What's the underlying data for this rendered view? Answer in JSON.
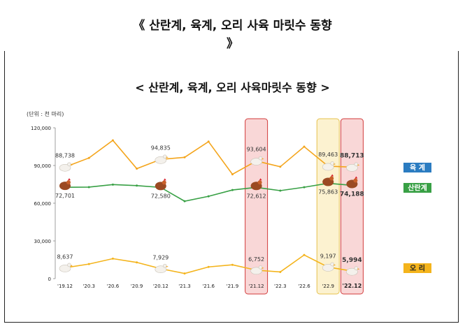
{
  "header": {
    "title_line1": "《 산란계, 육계, 오리 사육 마릿수 동향",
    "title_line2": "》"
  },
  "chart_data": {
    "type": "line",
    "title": "< 산란계, 육계, 오리 사육마릿수 동향 >",
    "unit_label": "(단위 : 천 마리)",
    "categories": [
      "'19.12",
      "'20.3",
      "'20.6",
      "'20.9",
      "'20.12",
      "'21.3",
      "'21.6",
      "'21.9",
      "'21.12",
      "'22.3",
      "'22.6",
      "'22.9",
      "'22.12"
    ],
    "ylim": [
      0,
      120000
    ],
    "yticks": [
      "0",
      "30,000",
      "60,000",
      "90,000",
      "120,000"
    ],
    "ytick_values": [
      0,
      30000,
      60000,
      90000,
      120000
    ],
    "grid": false,
    "legend_position": "right",
    "series": [
      {
        "name": "육 계",
        "color": "#f4a51c",
        "legend_color": "#2b7cc1",
        "values": [
          88738,
          96000,
          110000,
          87500,
          94835,
          96500,
          109000,
          83000,
          93604,
          89000,
          105000,
          89463,
          88713
        ],
        "labels": {
          "0": "88,738",
          "4": "94,835",
          "8": "93,604",
          "11": "89,463",
          "12": "88,713"
        },
        "icon": "chicken-white-icon"
      },
      {
        "name": "산란계",
        "color": "#38a045",
        "legend_color": "#38a045",
        "values": [
          72701,
          72800,
          74800,
          74000,
          72580,
          61600,
          65500,
          70500,
          72612,
          70000,
          72700,
          75863,
          74188
        ],
        "labels": {
          "0": "72,701",
          "4": "72,580",
          "8": "72,612",
          "11": "75,863",
          "12": "74,188"
        },
        "icon": "hen-brown-icon"
      },
      {
        "name": "오 리",
        "color": "#f4b41c",
        "legend_color": "#f4b41c",
        "values": [
          8637,
          11600,
          15900,
          12900,
          7929,
          4100,
          9300,
          11000,
          6752,
          5300,
          18800,
          9197,
          5994
        ],
        "labels": {
          "0": "8,637",
          "4": "7,929",
          "8": "6,752",
          "11": "9,197",
          "12": "5,994"
        },
        "icon": "duck-white-icon"
      }
    ],
    "highlights": [
      {
        "index": 8,
        "color": "pink"
      },
      {
        "index": 11,
        "color": "yellow"
      },
      {
        "index": 12,
        "color": "pink"
      }
    ],
    "bold_labels": [
      "88,713",
      "74,188",
      "5,994",
      "'22.12"
    ]
  }
}
